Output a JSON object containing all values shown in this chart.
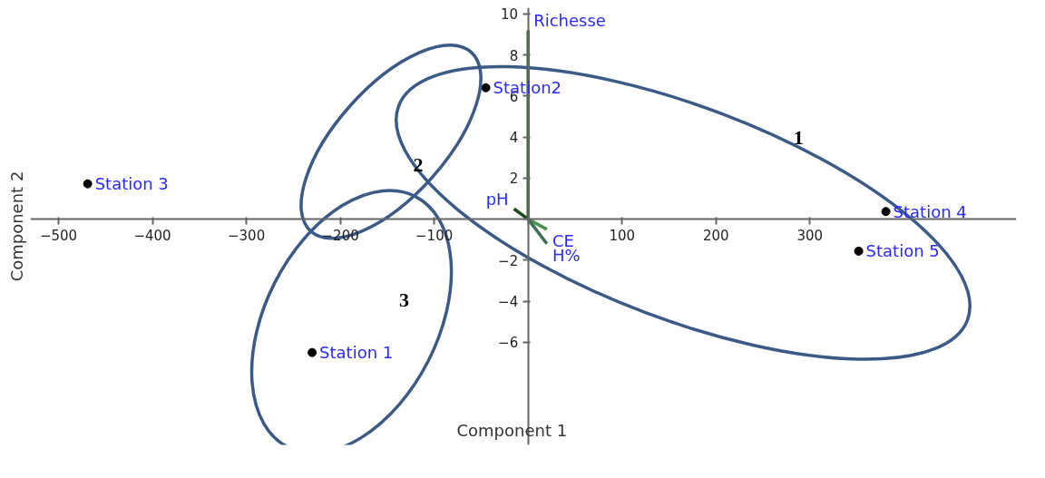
{
  "chart_data": {
    "type": "scatter",
    "xlabel": "Component 1",
    "ylabel": "Component 2",
    "xlim": [
      -530,
      520
    ],
    "ylim": [
      -11,
      10.3
    ],
    "xticks": [
      -500,
      -400,
      -300,
      -200,
      -100,
      {
        "value": 0,
        "label": null
      },
      100,
      200,
      300
    ],
    "yticks": [
      -6,
      -4,
      -2,
      {
        "value": 0,
        "label": null
      },
      2,
      4,
      6,
      8,
      10
    ],
    "series": [
      {
        "color": "#000000",
        "x": [
          -230,
          -45,
          -469,
          381,
          352
        ],
        "values": [
          -6.5,
          6.4,
          1.72,
          0.37,
          -1.56
        ]
      },
      {
        "type": "line",
        "name": "Richesse",
        "color": "#2e6b2e",
        "x": [
          0,
          0
        ],
        "values": [
          0,
          9.2
        ]
      },
      {
        "type": "line",
        "name": "pH",
        "color": "#1c4a1c",
        "x": [
          0,
          -15
        ],
        "values": [
          0,
          0.5
        ]
      },
      {
        "type": "line",
        "name": "CE",
        "color": "#4c8f4c",
        "x": [
          0,
          20
        ],
        "values": [
          0,
          -0.5
        ]
      },
      {
        "type": "line",
        "name": "H%",
        "color": "#3a6f58",
        "x": [
          0,
          20
        ],
        "values": [
          0,
          -1.2
        ]
      }
    ],
    "annotations": [
      "1",
      "2",
      "3",
      {
        "text": "Station 1",
        "x": -230,
        "y": -6.5
      },
      {
        "text": "Station2",
        "x": -45,
        "y": 6.4
      },
      {
        "text": "Station 3",
        "x": -469,
        "y": 1.72
      },
      {
        "text": "Station 4",
        "x": 381,
        "y": 0.37
      },
      {
        "text": "Station 5",
        "x": 352,
        "y": -1.56
      }
    ]
  }
}
